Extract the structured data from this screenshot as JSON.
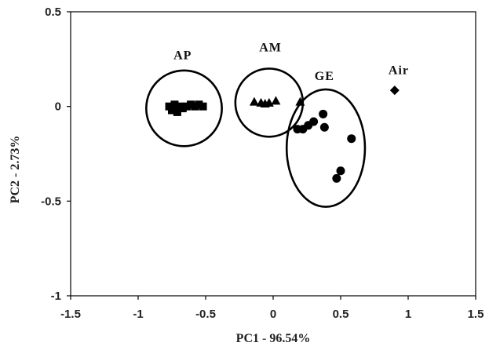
{
  "chart_data": {
    "type": "scatter",
    "xlabel": "PC1 - 96.54%",
    "ylabel": "PC2 - 2.73%",
    "xlim": [
      -1.5,
      1.5
    ],
    "ylim": [
      -1,
      0.5
    ],
    "xticks": [
      "-1.5",
      "-1",
      "-0.5",
      "0",
      "0.5",
      "1",
      "1.5"
    ],
    "yticks": [
      "0.5",
      "0",
      "-0.5",
      "-1"
    ],
    "grid": false,
    "legend": "none",
    "series": [
      {
        "name": "AP",
        "marker": "square",
        "color": "#000000",
        "x": [
          -0.77,
          -0.75,
          -0.73,
          -0.71,
          -0.69,
          -0.67,
          -0.64,
          -0.61,
          -0.58,
          -0.55,
          -0.52,
          -0.72
        ],
        "y": [
          0.0,
          -0.02,
          0.01,
          -0.03,
          0.0,
          -0.01,
          0.0,
          0.01,
          0.0,
          0.01,
          0.0,
          -0.02
        ]
      },
      {
        "name": "AM",
        "marker": "triangle",
        "color": "#000000",
        "x": [
          -0.14,
          -0.09,
          -0.06,
          -0.03,
          0.02,
          0.2
        ],
        "y": [
          0.025,
          0.02,
          0.015,
          0.02,
          0.03,
          0.025
        ]
      },
      {
        "name": "GE",
        "marker": "circle",
        "color": "#000000",
        "x": [
          0.18,
          0.22,
          0.26,
          0.3,
          0.37,
          0.38,
          0.58,
          0.5,
          0.47
        ],
        "y": [
          -0.12,
          -0.12,
          -0.1,
          -0.08,
          -0.04,
          -0.11,
          -0.17,
          -0.34,
          -0.38
        ]
      },
      {
        "name": "Air",
        "marker": "diamond",
        "color": "#000000",
        "x": [
          0.9
        ],
        "y": [
          0.085
        ]
      }
    ],
    "annotations": [
      {
        "text": "AP",
        "x": -0.67,
        "y": 0.25
      },
      {
        "text": "AM",
        "x": -0.02,
        "y": 0.29
      },
      {
        "text": "GE",
        "x": 0.38,
        "y": 0.14
      },
      {
        "text": "Air",
        "x": 0.93,
        "y": 0.17
      }
    ],
    "group_ellipses": [
      {
        "group": "AP",
        "cx": -0.66,
        "cy": -0.01,
        "rx": 0.28,
        "ry": 0.2
      },
      {
        "group": "AM",
        "cx": -0.03,
        "cy": 0.02,
        "rx": 0.25,
        "ry": 0.18
      },
      {
        "group": "GE",
        "cx": 0.39,
        "cy": -0.22,
        "rx": 0.29,
        "ry": 0.31
      }
    ]
  }
}
